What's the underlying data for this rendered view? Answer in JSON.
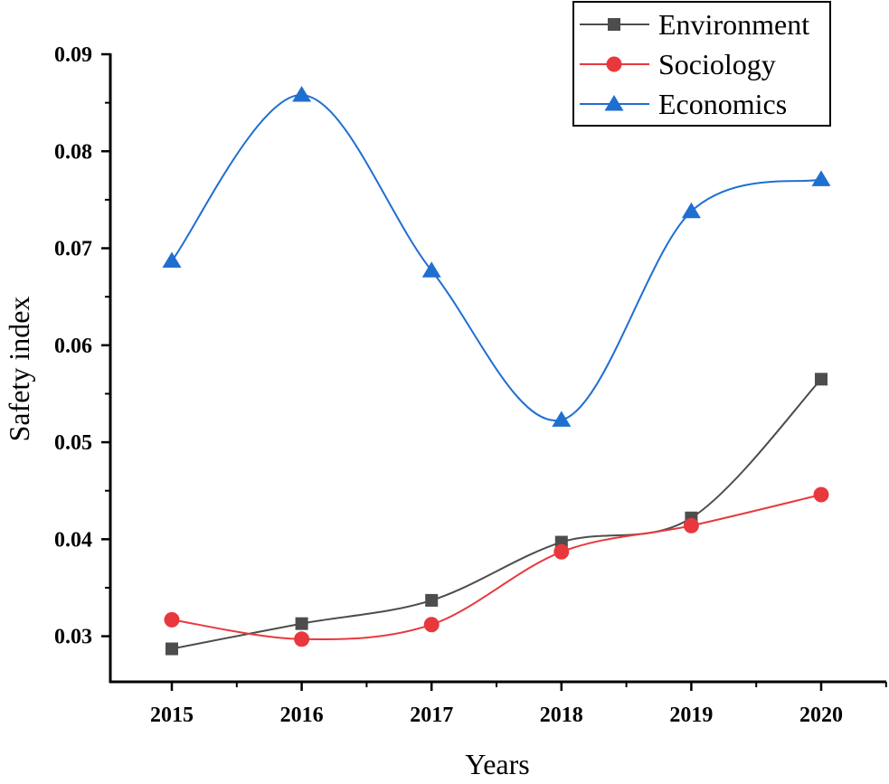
{
  "chart_data": {
    "type": "line",
    "title": "",
    "xlabel": "Years",
    "ylabel": "Safety index",
    "categories": [
      "2015",
      "2016",
      "2017",
      "2018",
      "2019",
      "2020"
    ],
    "xlim": [
      2014.5,
      2020.5
    ],
    "ylim": [
      0.0253,
      0.09
    ],
    "yticks": [
      "0.03",
      "0.04",
      "0.05",
      "0.06",
      "0.07",
      "0.08",
      "0.09"
    ],
    "ytick_values": [
      0.03,
      0.04,
      0.05,
      0.06,
      0.07,
      0.08,
      0.09
    ],
    "grid": false,
    "legend_position": "top-right",
    "series": [
      {
        "name": "Environment",
        "marker": "square",
        "color": "#4d4d4d",
        "values": [
          0.0287,
          0.0313,
          0.0337,
          0.0397,
          0.0422,
          0.0565
        ]
      },
      {
        "name": "Sociology",
        "marker": "circle",
        "color": "#e8383d",
        "values": [
          0.0317,
          0.0297,
          0.0312,
          0.0387,
          0.0414,
          0.0446
        ]
      },
      {
        "name": "Economics",
        "marker": "triangle",
        "color": "#1f6fd1",
        "values": [
          0.0687,
          0.0858,
          0.0677,
          0.0523,
          0.0738,
          0.0771
        ]
      }
    ]
  }
}
